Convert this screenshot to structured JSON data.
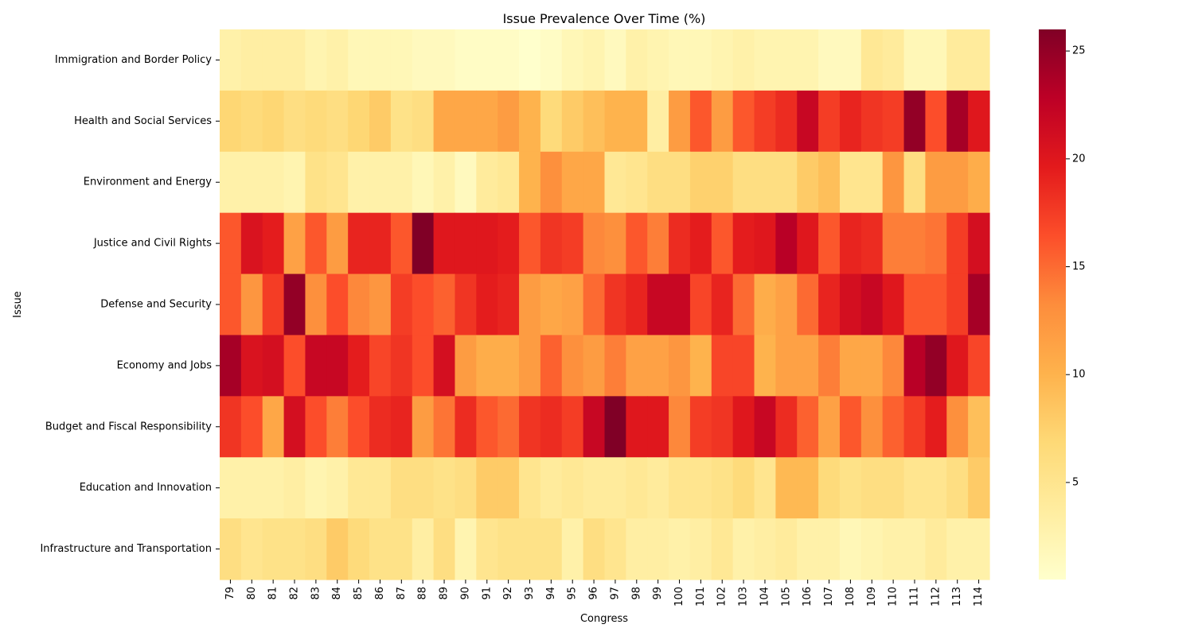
{
  "chart_data": {
    "type": "heatmap",
    "title": "Issue Prevalence Over Time (%)",
    "xlabel": "Congress",
    "ylabel": "Issue",
    "x": [
      "79",
      "80",
      "81",
      "82",
      "83",
      "84",
      "85",
      "86",
      "87",
      "88",
      "89",
      "90",
      "91",
      "92",
      "93",
      "94",
      "95",
      "96",
      "97",
      "98",
      "99",
      "100",
      "101",
      "102",
      "103",
      "104",
      "105",
      "106",
      "107",
      "108",
      "109",
      "110",
      "111",
      "112",
      "113",
      "114"
    ],
    "y": [
      "Immigration and Border Policy",
      "Health and Social Services",
      "Environment and Energy",
      "Justice and Civil Rights",
      "Defense and Security",
      "Economy and Jobs",
      "Budget and Fiscal Responsibility",
      "Education and Innovation",
      "Infrastructure and Transportation"
    ],
    "values": [
      [
        3,
        3.5,
        3.5,
        3.5,
        2.5,
        3,
        2,
        2,
        2,
        1.5,
        1.5,
        1,
        1,
        1,
        0.5,
        1,
        2,
        2.5,
        1.5,
        3,
        2.5,
        2,
        2,
        2.5,
        3,
        2.5,
        2.5,
        2.5,
        1.5,
        1.5,
        4.5,
        4,
        2,
        2,
        4,
        4
      ],
      [
        7,
        6.5,
        7,
        6,
        6.5,
        6,
        7,
        8,
        5.5,
        6,
        11,
        11,
        11,
        12,
        10,
        6.5,
        8,
        9,
        10,
        10,
        3.5,
        12,
        16,
        12,
        16,
        17.5,
        18.5,
        22,
        17.5,
        19,
        18,
        17.5,
        25,
        16.5,
        24,
        20
      ],
      [
        3,
        3,
        3,
        2.5,
        5.5,
        5,
        3,
        3,
        3,
        2,
        3,
        1.5,
        4,
        4.5,
        10,
        13,
        11,
        11,
        4.5,
        5,
        6,
        6,
        7.5,
        7.5,
        6,
        6,
        6,
        8,
        9,
        5,
        5,
        12.5,
        6,
        12,
        12,
        10.5
      ],
      [
        16,
        20.5,
        19.5,
        11.5,
        16,
        12,
        19,
        19,
        16,
        26,
        20,
        20,
        20,
        19.5,
        16,
        18,
        17.5,
        13.5,
        13,
        16,
        14,
        18.5,
        19.5,
        16,
        19.5,
        20,
        23,
        20,
        16,
        19,
        18.5,
        14,
        14,
        14.5,
        17.5,
        21
      ],
      [
        16,
        12.5,
        17.5,
        25,
        13,
        16.5,
        13.5,
        12.5,
        17.5,
        16.5,
        15.5,
        18,
        19.5,
        19,
        12,
        11,
        11.5,
        15,
        18,
        19,
        22,
        22,
        17,
        19,
        15,
        10.5,
        11.5,
        15,
        19,
        21,
        22,
        20,
        16,
        16,
        17.5,
        24
      ],
      [
        24,
        20.5,
        21,
        16.5,
        22,
        22,
        19.5,
        17,
        18,
        16.5,
        21,
        12,
        10.5,
        10.5,
        12,
        15.5,
        13,
        12,
        14,
        11.5,
        11.5,
        12.5,
        10,
        17,
        17,
        10,
        11.5,
        11.5,
        14,
        11,
        11,
        13.5,
        23,
        25,
        20,
        17
      ],
      [
        18,
        16.5,
        11,
        21,
        16.5,
        14,
        16.5,
        18.5,
        19,
        12,
        14.5,
        18.5,
        16,
        15,
        18,
        18.5,
        17.5,
        22,
        26,
        20,
        20,
        13.5,
        17.5,
        18,
        20,
        22,
        18.5,
        15.5,
        11.5,
        16,
        13,
        15.5,
        17.5,
        19.5,
        13,
        9
      ],
      [
        3,
        3,
        3,
        3.5,
        2.5,
        3,
        4.5,
        4.5,
        6,
        6,
        5.5,
        6,
        8,
        8,
        5,
        4,
        4.5,
        4,
        4,
        4.5,
        4,
        5,
        5,
        5.5,
        6.5,
        5,
        9.5,
        9.5,
        6.5,
        5.5,
        6,
        6,
        5,
        5,
        6,
        8
      ],
      [
        6,
        5,
        5.5,
        5.5,
        6,
        8,
        6.5,
        5.5,
        5.5,
        3.5,
        6,
        2.5,
        5,
        5.5,
        5.5,
        5.5,
        3,
        6,
        5,
        3.5,
        3.5,
        3,
        3.5,
        4.5,
        3,
        3.5,
        4,
        3,
        3,
        2,
        2.5,
        3,
        3,
        4,
        3,
        3
      ]
    ],
    "colorbar": {
      "range": [
        0.5,
        26
      ],
      "ticks": [
        5,
        10,
        15,
        20,
        25
      ],
      "colormap": "YlOrRd"
    },
    "colors": {
      "cmap": [
        "#ffffcc",
        "#ffeda0",
        "#fed976",
        "#feb24c",
        "#fd8d3c",
        "#fc4e2a",
        "#e31a1c",
        "#bd0026",
        "#800026"
      ],
      "background": "#ffffff",
      "text": "#000000"
    }
  }
}
